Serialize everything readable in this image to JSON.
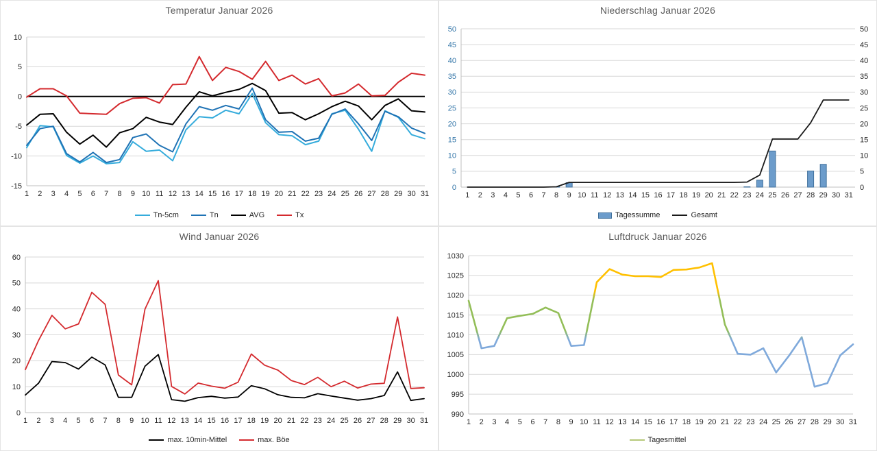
{
  "chart_data": [
    {
      "id": "temperature",
      "type": "line",
      "title": "Temperatur Januar 2026",
      "categories": [
        1,
        2,
        3,
        4,
        5,
        6,
        7,
        8,
        9,
        10,
        11,
        12,
        13,
        14,
        15,
        16,
        17,
        18,
        19,
        20,
        21,
        22,
        23,
        24,
        25,
        26,
        27,
        28,
        29,
        30,
        31
      ],
      "ylim": [
        -15,
        10
      ],
      "ytick_step": 5,
      "x_on_ticks": true,
      "zero_line": true,
      "grid": true,
      "legend_position": "bottom",
      "xlabel": "",
      "ylabel": "",
      "series": [
        {
          "name": "Tn-5cm",
          "type": "line",
          "color": "#35ACDC",
          "values": [
            -8.6,
            -4.9,
            -5.1,
            -9.9,
            -11.2,
            -10.0,
            -11.3,
            -11.1,
            -7.6,
            -9.2,
            -9.0,
            -10.8,
            -5.6,
            -3.4,
            -3.6,
            -2.3,
            -2.9,
            0.5,
            -4.4,
            -6.4,
            -6.6,
            -8.1,
            -7.5,
            -2.9,
            -2.3,
            -5.5,
            -9.2,
            -2.4,
            -3.5,
            -6.4,
            -7.1
          ]
        },
        {
          "name": "Tn",
          "type": "line",
          "color": "#1F73B5",
          "values": [
            -8.2,
            -5.4,
            -5.0,
            -9.6,
            -11.0,
            -9.4,
            -11.1,
            -10.6,
            -6.9,
            -6.3,
            -8.2,
            -9.3,
            -4.6,
            -1.7,
            -2.3,
            -1.5,
            -2.1,
            1.4,
            -3.9,
            -6.0,
            -5.9,
            -7.5,
            -7.0,
            -3.0,
            -2.1,
            -4.6,
            -7.4,
            -2.5,
            -3.4,
            -5.3,
            -6.2
          ]
        },
        {
          "name": "AVG",
          "type": "line",
          "color": "#000000",
          "values": [
            -4.8,
            -3.0,
            -2.9,
            -6.0,
            -8.0,
            -6.5,
            -8.5,
            -6.1,
            -5.4,
            -3.5,
            -4.3,
            -4.7,
            -1.8,
            0.8,
            0.1,
            0.7,
            1.2,
            2.2,
            1.0,
            -2.8,
            -2.7,
            -3.9,
            -2.9,
            -1.7,
            -0.8,
            -1.6,
            -3.9,
            -1.5,
            -0.4,
            -2.4,
            -2.6
          ]
        },
        {
          "name": "Tx",
          "type": "line",
          "color": "#D42A2E",
          "values": [
            -0.1,
            1.3,
            1.3,
            0.1,
            -2.8,
            -2.9,
            -3.0,
            -1.2,
            -0.3,
            -0.2,
            -1.1,
            2.0,
            2.1,
            6.7,
            2.7,
            4.9,
            4.2,
            2.9,
            5.9,
            2.7,
            3.6,
            2.1,
            3.0,
            0.1,
            0.6,
            2.1,
            0.1,
            0.2,
            2.4,
            3.9,
            3.6
          ]
        }
      ]
    },
    {
      "id": "precipitation",
      "type": "bar",
      "title": "Niederschlag Januar 2026",
      "categories": [
        1,
        2,
        3,
        4,
        5,
        6,
        7,
        8,
        9,
        10,
        11,
        12,
        13,
        14,
        15,
        16,
        17,
        18,
        19,
        20,
        21,
        22,
        23,
        24,
        25,
        26,
        27,
        28,
        29,
        30,
        31
      ],
      "ylim": [
        0,
        50
      ],
      "ytick_step": 5,
      "x_on_ticks": false,
      "zero_line": false,
      "grid": true,
      "y_axis_sides": "both",
      "left_tick_color": "#3577A9",
      "right_tick_color": "#262626",
      "legend_position": "bottom",
      "xlabel": "",
      "ylabel": "",
      "series": [
        {
          "name": "Tagessumme",
          "type": "bar",
          "color": "#6C9CCB",
          "border_color": "#41719C",
          "values": [
            0,
            0,
            0,
            0,
            0,
            0,
            0,
            0.1,
            1.4,
            0,
            0,
            0,
            0,
            0,
            0,
            0,
            0,
            0,
            0,
            0,
            0,
            0,
            0.1,
            2.2,
            11.4,
            0,
            0,
            5.1,
            7.2,
            0,
            0
          ]
        },
        {
          "name": "Gesamt",
          "type": "line",
          "color": "#1A1A1A",
          "values": [
            0,
            0,
            0,
            0,
            0,
            0,
            0,
            0.1,
            1.5,
            1.5,
            1.5,
            1.5,
            1.5,
            1.5,
            1.5,
            1.5,
            1.5,
            1.5,
            1.5,
            1.5,
            1.5,
            1.5,
            1.6,
            3.8,
            15.2,
            15.2,
            15.2,
            20.3,
            27.5,
            27.5,
            27.5
          ]
        }
      ]
    },
    {
      "id": "wind",
      "type": "line",
      "title": "Wind Januar 2026",
      "categories": [
        1,
        2,
        3,
        4,
        5,
        6,
        7,
        8,
        9,
        10,
        11,
        12,
        13,
        14,
        15,
        16,
        17,
        18,
        19,
        20,
        21,
        22,
        23,
        24,
        25,
        26,
        27,
        28,
        29,
        30,
        31
      ],
      "ylim": [
        0,
        60
      ],
      "ytick_step": 10,
      "x_on_ticks": true,
      "zero_line": false,
      "grid": true,
      "legend_position": "bottom",
      "xlabel": "",
      "ylabel": "",
      "series": [
        {
          "name": "max. 10min-Mittel",
          "type": "line",
          "color": "#000000",
          "values": [
            6.8,
            11.4,
            19.7,
            19.3,
            16.8,
            21.4,
            18.4,
            5.9,
            5.9,
            17.9,
            22.4,
            5.0,
            4.4,
            5.8,
            6.3,
            5.6,
            6.0,
            10.4,
            9.2,
            6.9,
            5.9,
            5.7,
            7.3,
            6.4,
            5.6,
            4.8,
            5.4,
            6.6,
            15.7,
            4.7,
            5.4
          ]
        },
        {
          "name": "max. Böe",
          "type": "line",
          "color": "#D42A2E",
          "values": [
            16.6,
            27.9,
            37.5,
            32.3,
            34.2,
            46.4,
            41.8,
            14.5,
            10.7,
            39.9,
            50.9,
            10.1,
            7.2,
            11.4,
            10.2,
            9.4,
            11.7,
            22.6,
            18.3,
            16.4,
            12.4,
            10.8,
            13.6,
            10.0,
            12.1,
            9.5,
            11.0,
            11.3,
            36.9,
            9.3,
            9.6
          ]
        }
      ]
    },
    {
      "id": "pressure",
      "type": "line",
      "title": "Luftdruck Januar 2026",
      "categories": [
        1,
        2,
        3,
        4,
        5,
        6,
        7,
        8,
        9,
        10,
        11,
        12,
        13,
        14,
        15,
        16,
        17,
        18,
        19,
        20,
        21,
        22,
        23,
        24,
        25,
        26,
        27,
        28,
        29,
        30,
        31
      ],
      "ylim": [
        990,
        1030
      ],
      "ytick_step": 5,
      "x_on_ticks": true,
      "zero_line": false,
      "grid": true,
      "legend_position": "bottom",
      "xlabel": "",
      "ylabel": "",
      "series": [
        {
          "name": "Tagesmittel",
          "type": "line",
          "color": "#93BE58",
          "legend_color": "#B5C878",
          "color_by_value": {
            "thresholds": [
              1010,
              1020
            ],
            "colors": [
              "#7FA9DB",
              "#93BE58",
              "#FFC000"
            ]
          },
          "values": [
            1018.6,
            1006.6,
            1007.2,
            1014.2,
            1014.8,
            1015.3,
            1016.9,
            1015.5,
            1007.2,
            1007.4,
            1023.3,
            1026.6,
            1025.2,
            1024.8,
            1024.8,
            1024.6,
            1026.4,
            1026.5,
            1027.0,
            1028.1,
            1012.6,
            1005.2,
            1005.0,
            1006.6,
            1000.5,
            1004.7,
            1009.4,
            996.9,
            997.8,
            1004.8,
            1007.6
          ]
        }
      ]
    }
  ]
}
